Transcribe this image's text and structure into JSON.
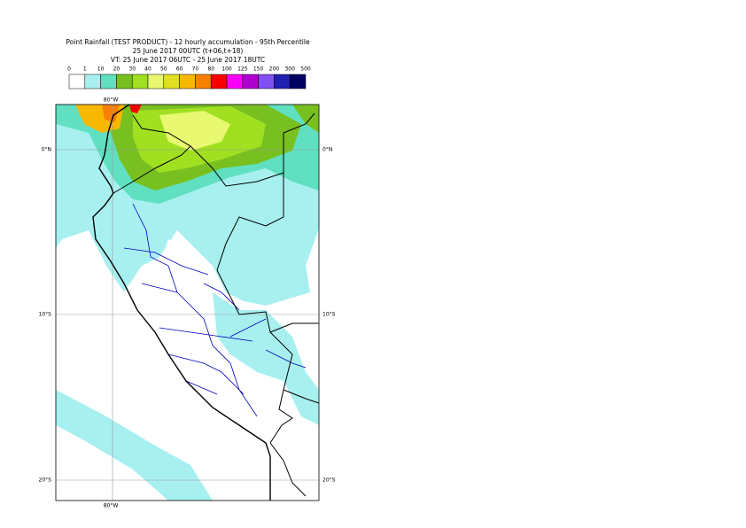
{
  "header": {
    "title": "Point Rainfall (TEST PRODUCT) - 12 hourly accumulation - 95th Percentile",
    "base_time": "25 June 2017 00UTC (t+06,t+18)",
    "valid_time": "VT: 25 June 2017 06UTC - 25 June 2017 18UTC"
  },
  "legend": {
    "levels": [
      0,
      1,
      10,
      20,
      30,
      40,
      50,
      60,
      70,
      80,
      100,
      125,
      150,
      200,
      300,
      500
    ],
    "colors": [
      "#ffffff",
      "#a8f0f0",
      "#60e0c0",
      "#78c020",
      "#a0e020",
      "#e8f870",
      "#e0e020",
      "#f8b800",
      "#f88000",
      "#f80000",
      "#f800f8",
      "#b000d0",
      "#8050f0",
      "#2020b0",
      "#000060"
    ]
  },
  "map": {
    "lat_labels": [
      "0°N",
      "10°S",
      "20°S"
    ],
    "lon_labels": [
      "80°W"
    ]
  }
}
